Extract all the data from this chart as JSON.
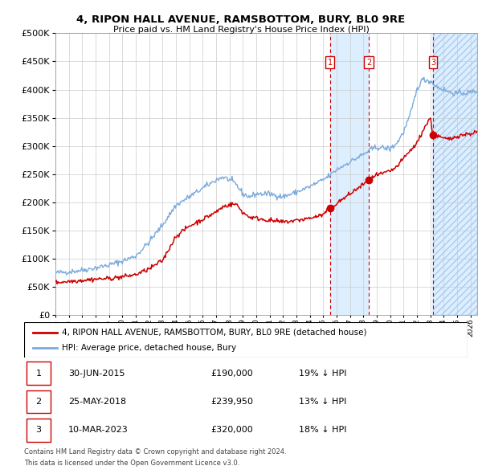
{
  "title": "4, RIPON HALL AVENUE, RAMSBOTTOM, BURY, BL0 9RE",
  "subtitle": "Price paid vs. HM Land Registry's House Price Index (HPI)",
  "legend_line1": "4, RIPON HALL AVENUE, RAMSBOTTOM, BURY, BL0 9RE (detached house)",
  "legend_line2": "HPI: Average price, detached house, Bury",
  "sale_labels": [
    "1",
    "2",
    "3"
  ],
  "sale_dates_num": [
    2015.5,
    2018.4,
    2023.2
  ],
  "sale_prices": [
    190000,
    239950,
    320000
  ],
  "sale_dates_str": [
    "30-JUN-2015",
    "25-MAY-2018",
    "10-MAR-2023"
  ],
  "sale_prices_str": [
    "£190,000",
    "£239,950",
    "£320,000"
  ],
  "sale_hpi_str": [
    "19% ↓ HPI",
    "13% ↓ HPI",
    "18% ↓ HPI"
  ],
  "hpi_color": "#7aaadd",
  "property_color": "#cc0000",
  "shade_color": "#ddeeff",
  "grid_color": "#cccccc",
  "footnote1": "Contains HM Land Registry data © Crown copyright and database right 2024.",
  "footnote2": "This data is licensed under the Open Government Licence v3.0.",
  "ylim": [
    0,
    500000
  ],
  "xlim_start": 1995.0,
  "xlim_end": 2026.5
}
